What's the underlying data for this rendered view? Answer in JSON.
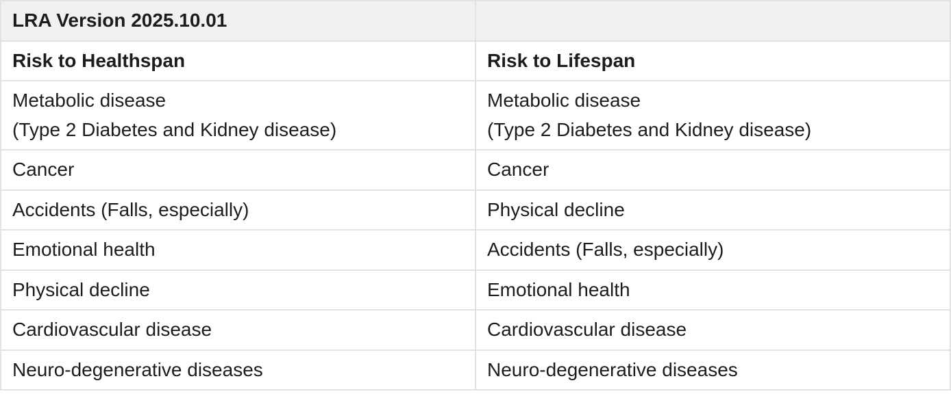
{
  "table": {
    "title": "LRA Version 2025.10.01",
    "columns": [
      {
        "label": "Risk to Healthspan"
      },
      {
        "label": "Risk to Lifespan"
      }
    ],
    "rows": [
      {
        "healthspan": "Metabolic disease\n(Type 2 Diabetes and Kidney disease)",
        "lifespan": "Metabolic disease\n(Type 2 Diabetes and Kidney disease)"
      },
      {
        "healthspan": "Cancer",
        "lifespan": "Cancer"
      },
      {
        "healthspan": "Accidents (Falls, especially)",
        "lifespan": "Physical decline"
      },
      {
        "healthspan": "Emotional health",
        "lifespan": "Accidents (Falls, especially)"
      },
      {
        "healthspan": "Physical decline",
        "lifespan": "Emotional health"
      },
      {
        "healthspan": "Cardiovascular disease",
        "lifespan": "Cardiovascular disease"
      },
      {
        "healthspan": "Neuro-degenerative diseases",
        "lifespan": "Neuro-degenerative diseases"
      }
    ],
    "colors": {
      "header_bg": "#f1f1f2",
      "border": "#e2e2e3",
      "text": "#1c1c1e"
    }
  }
}
